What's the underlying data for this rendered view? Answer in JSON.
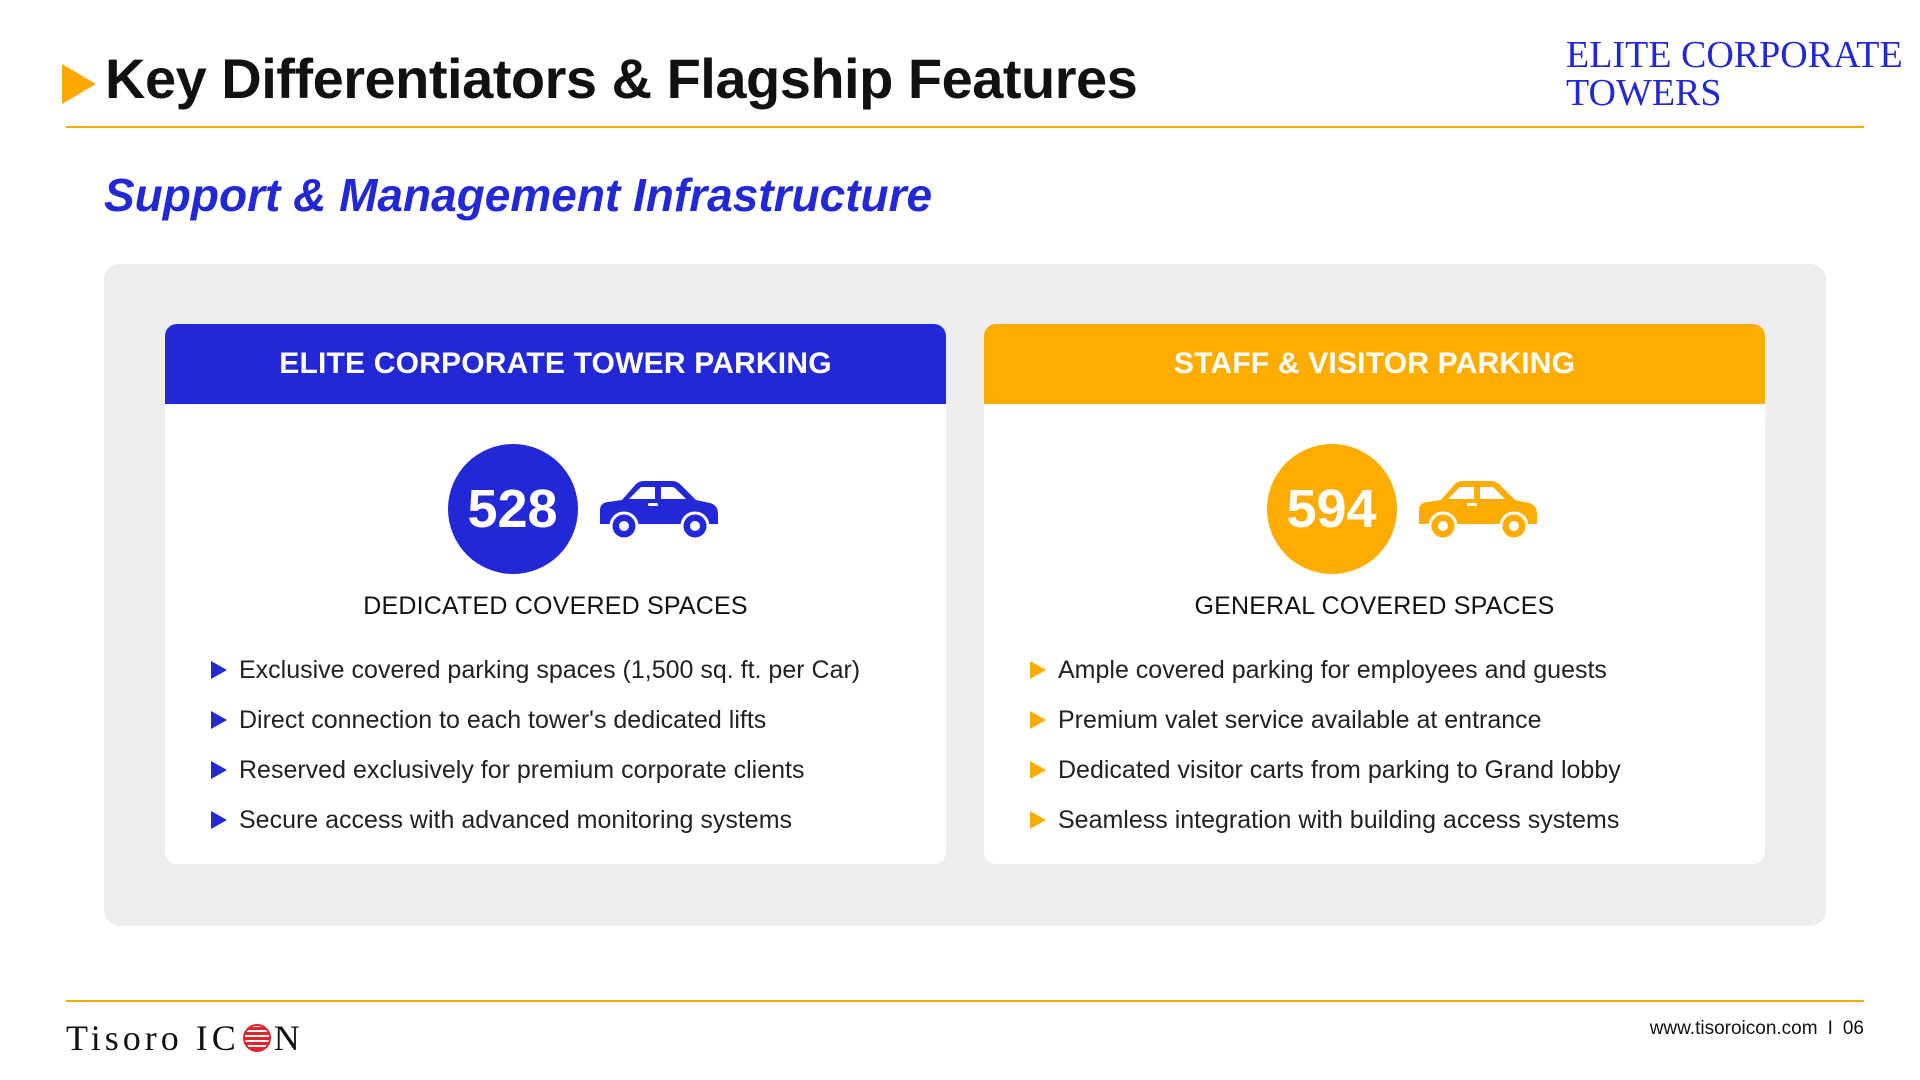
{
  "header": {
    "title": "Key Differentiators & Flagship Features",
    "brand_line1": "ELITE CORPORATE",
    "brand_line2": "TOWERS"
  },
  "subtitle": "Support & Management Infrastructure",
  "colors": {
    "accent_blue": "#2328D6",
    "accent_orange": "#FFAC00",
    "panel_gray": "#EDEDEF"
  },
  "cards": [
    {
      "heading": "ELITE CORPORATE TOWER PARKING",
      "count": "528",
      "icon": "car-icon",
      "label": "DEDICATED COVERED SPACES",
      "features": [
        "Exclusive covered parking spaces (1,500 sq. ft. per Car)",
        "Direct connection to each tower's dedicated lifts",
        "Reserved exclusively for premium corporate clients",
        "Secure access with advanced monitoring systems"
      ]
    },
    {
      "heading": "STAFF & VISITOR PARKING",
      "count": "594",
      "icon": "car-icon",
      "label": "GENERAL COVERED SPACES",
      "features": [
        "Ample covered parking for employees and guests",
        "Premium valet service available at entrance",
        "Dedicated visitor carts from parking to Grand lobby",
        "Seamless integration with building access systems"
      ]
    }
  ],
  "footer": {
    "logo_part1": "Tisoro IC",
    "logo_part2": "N",
    "website": "www.tisoroicon.com",
    "separator": "I",
    "page_number": "06"
  }
}
